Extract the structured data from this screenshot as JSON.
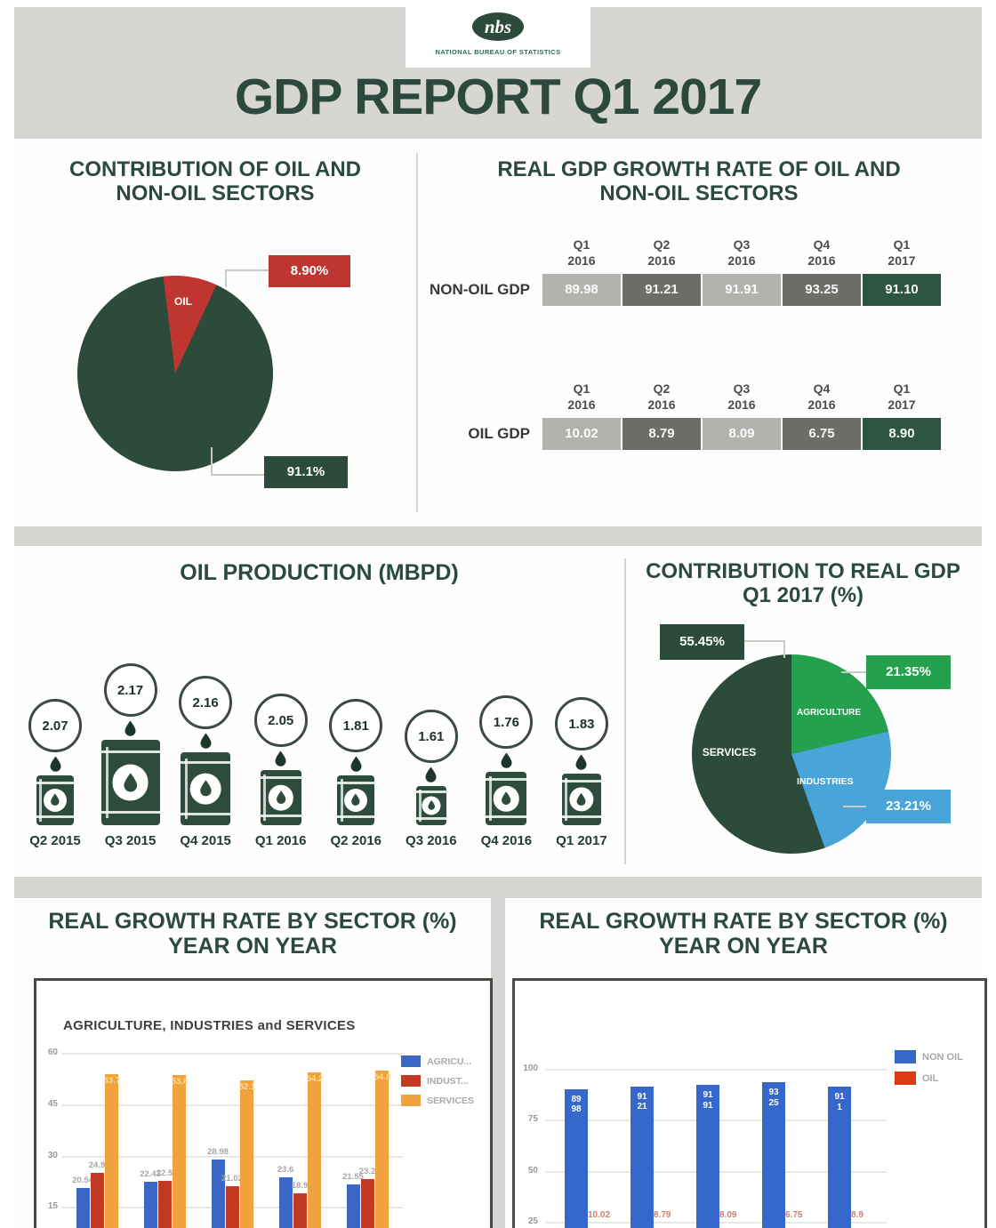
{
  "header": {
    "logo_text": "nbs",
    "logo_subtitle": "NATIONAL BUREAU OF STATISTICS",
    "title": "GDP REPORT Q1 2017"
  },
  "chart_data": [
    {
      "id": "contribution-oil-nonoil",
      "type": "pie",
      "title": "CONTRIBUTION OF OIL AND NON-OIL SECTORS",
      "slices": [
        {
          "label": "OIL",
          "value": 8.9,
          "display": "8.90%",
          "color": "#bf3630"
        },
        {
          "label": "NON-OIL",
          "value": 91.1,
          "display": "91.1%",
          "color": "#2c4b3a"
        }
      ],
      "legend_position": "callouts"
    },
    {
      "id": "real-gdp-growth-rates",
      "type": "table",
      "title": "REAL GDP GROWTH RATE OF OIL AND NON-OIL SECTORS",
      "columns": [
        "Q1 2016",
        "Q2 2016",
        "Q3 2016",
        "Q4 2016",
        "Q1 2017"
      ],
      "rows": [
        {
          "label": "NON-OIL GDP",
          "values": [
            "89.98",
            "91.21",
            "91.91",
            "93.25",
            "91.10"
          ]
        },
        {
          "label": "OIL GDP",
          "values": [
            "10.02",
            "8.79",
            "8.09",
            "6.75",
            "8.90"
          ]
        }
      ]
    },
    {
      "id": "oil-production-mbpd",
      "type": "bar",
      "title": "OIL PRODUCTION (MBPD)",
      "categories": [
        "Q2 2015",
        "Q3 2015",
        "Q4 2015",
        "Q1 2016",
        "Q2 2016",
        "Q3 2016",
        "Q4 2016",
        "Q1 2017"
      ],
      "values": [
        2.07,
        2.17,
        2.16,
        2.05,
        1.81,
        1.61,
        1.76,
        1.83
      ]
    },
    {
      "id": "contribution-to-real-gdp-q1-2017",
      "type": "pie",
      "title": "CONTRIBUTION TO REAL GDP Q1 2017 (%)",
      "slices": [
        {
          "label": "AGRICULTURE",
          "value": 21.35,
          "display": "21.35%",
          "color": "#23a14e"
        },
        {
          "label": "INDUSTRIES",
          "value": 23.21,
          "display": "23.21%",
          "color": "#49a5d8"
        },
        {
          "label": "SERVICES",
          "value": 55.45,
          "display": "55.45%",
          "color": "#2c4b3a"
        }
      ],
      "legend_position": "callouts"
    },
    {
      "id": "growth-rate-agric-industries-services",
      "type": "bar",
      "title": "REAL GROWTH RATE BY SECTOR (%) YEAR ON YEAR",
      "subtitle": "AGRICULTURE, INDUSTRIES and SERVICES",
      "series": [
        {
          "name": "AGRICU...",
          "color": "#3b67c8",
          "values": [
            20.54,
            22.43,
            28.98,
            23.6,
            21.55
          ]
        },
        {
          "name": "INDUST...",
          "color": "#c23a22",
          "values": [
            24.9,
            22.5,
            21.02,
            18.9,
            23.2
          ]
        },
        {
          "name": "SERVICES",
          "color": "#f0a33c",
          "values": [
            53.7,
            53.6,
            52.1,
            54.2,
            54.8
          ]
        }
      ],
      "ylim": [
        0,
        60
      ],
      "yticks": [
        15,
        30,
        45,
        60
      ],
      "grid": true,
      "legend_position": "right"
    },
    {
      "id": "growth-rate-oil-nonoil",
      "type": "bar",
      "title": "REAL GROWTH RATE BY SECTOR (%) YEAR ON YEAR",
      "series": [
        {
          "name": "NON OIL",
          "color": "#3667cb",
          "values": [
            89.98,
            91.21,
            91.91,
            93.25,
            91.1
          ]
        },
        {
          "name": "OIL",
          "color": "#dc3a12",
          "values": [
            10.02,
            8.79,
            8.09,
            6.75,
            8.9
          ]
        }
      ],
      "ylim": [
        0,
        100
      ],
      "yticks": [
        25,
        50,
        75,
        100
      ],
      "grid": true,
      "legend_position": "right"
    }
  ]
}
